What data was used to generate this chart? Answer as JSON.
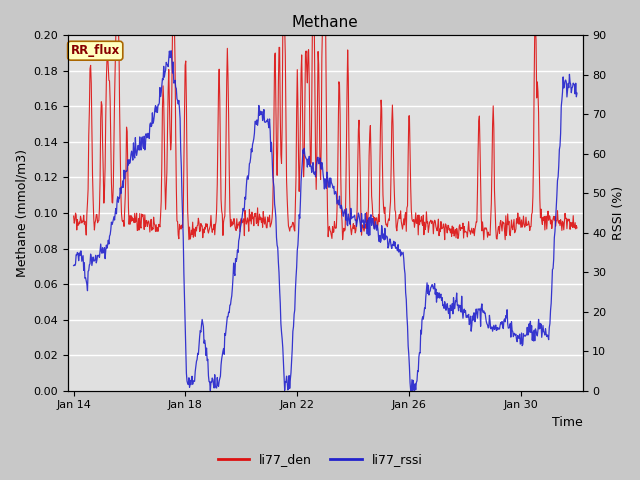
{
  "title": "Methane",
  "xlabel": "Time",
  "ylabel_left": "Methane (mmol/m3)",
  "ylabel_right": "RSSI (%)",
  "ylim_left": [
    0.0,
    0.2
  ],
  "ylim_right": [
    0,
    90
  ],
  "yticks_left": [
    0.0,
    0.02,
    0.04,
    0.06,
    0.08,
    0.1,
    0.12,
    0.14,
    0.16,
    0.18,
    0.2
  ],
  "yticks_right": [
    0,
    10,
    20,
    30,
    40,
    50,
    60,
    70,
    80,
    90
  ],
  "xtick_positions": [
    0,
    4,
    8,
    12,
    16
  ],
  "xtick_labels": [
    "Jan 14",
    "Jan 18",
    "Jan 22",
    "Jan 26",
    "Jan 30"
  ],
  "xlim": [
    -0.2,
    18.2
  ],
  "fig_bg_color": "#c8c8c8",
  "plot_bg_color": "#e0e0e0",
  "grid_color": "#ffffff",
  "red_color": "#dd1111",
  "blue_color": "#2222cc",
  "annotation_text": "RR_flux",
  "annotation_bg": "#ffffc0",
  "annotation_border": "#aa6600",
  "legend_red": "li77_den",
  "legend_blue": "li77_rssi",
  "title_fontsize": 11,
  "axis_label_fontsize": 9,
  "tick_fontsize": 8,
  "legend_fontsize": 9
}
